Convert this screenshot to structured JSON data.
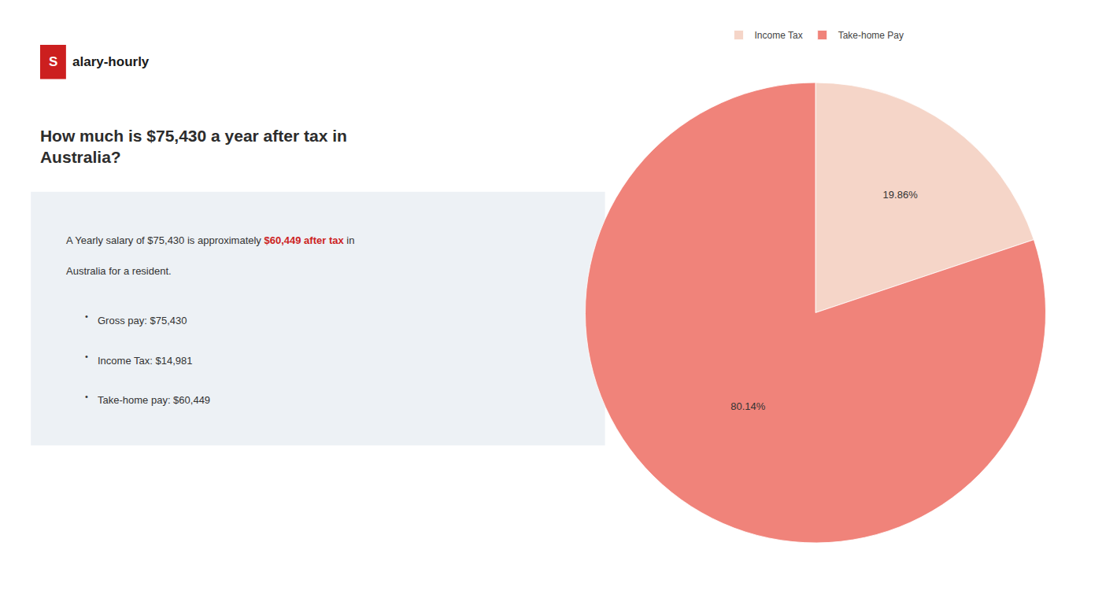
{
  "chart_data": {
    "type": "pie",
    "title": "How much is $75,430 a year after tax in\nAustralia?",
    "categories": [
      "Income Tax",
      "Take-home Pay"
    ],
    "values": [
      19.86,
      80.14
    ],
    "value_labels": [
      "19.86%",
      "80.14%"
    ],
    "colors": [
      "#f5d5c8",
      "#f0837a"
    ],
    "data_labels": true,
    "legend": "top",
    "annotations": [
      {
        "text": "S",
        "color": "#cc1f1f"
      },
      {
        "text": "alary-hourly"
      },
      [
        {
          "text": "A Yearly salary of $75,430 is approximately "
        },
        {
          "text": "$60,449 after tax",
          "color": "#cc1f1f"
        },
        {
          "text": " in"
        }
      ],
      {
        "text": "Australia for a resident."
      },
      {
        "text": "•"
      },
      {
        "text": "Gross pay: $75,430"
      },
      {
        "text": "•"
      },
      {
        "text": "Income Tax: $14,981"
      },
      {
        "text": "•"
      },
      {
        "text": "Take-home pay: $60,449"
      }
    ]
  }
}
